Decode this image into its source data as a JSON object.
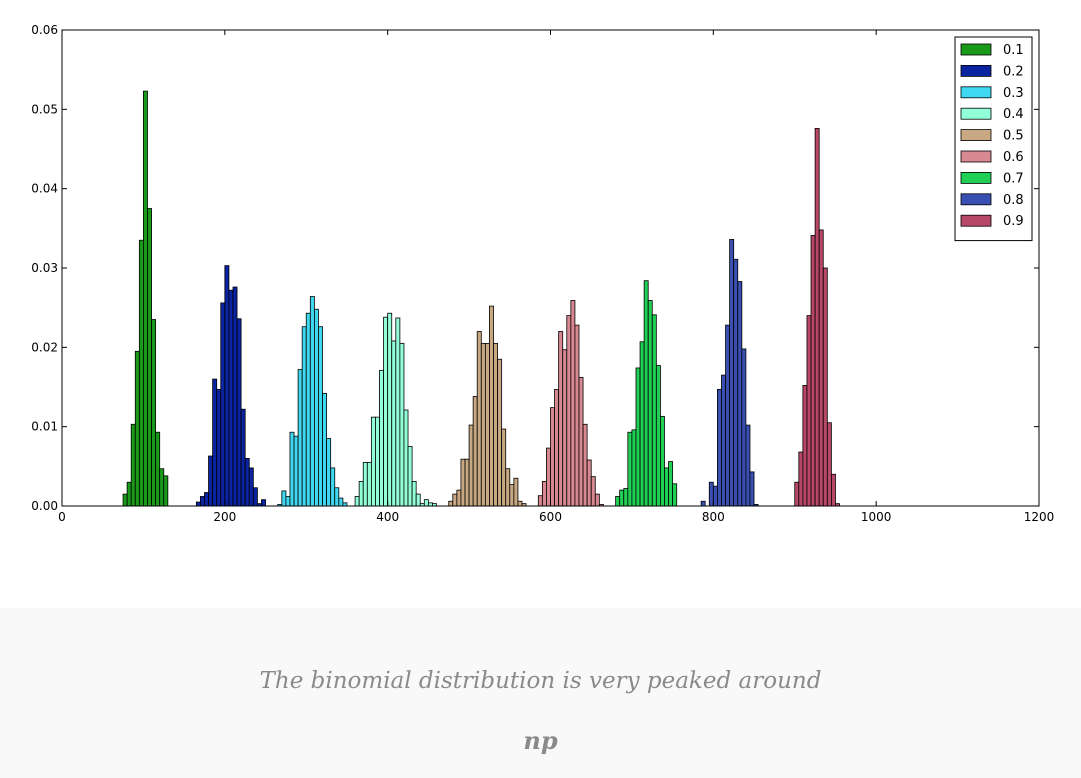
{
  "chart_data": {
    "type": "histogram",
    "xlim": [
      0,
      1200
    ],
    "xticks": [
      0,
      200,
      400,
      600,
      800,
      1000,
      1200
    ],
    "ylim": [
      0,
      0.06
    ],
    "yticks": [
      {
        "value": 0,
        "label": "0.00"
      },
      {
        "value": 0.01,
        "label": "0.01"
      },
      {
        "value": 0.02,
        "label": "0.02"
      },
      {
        "value": 0.03,
        "label": "0.03"
      },
      {
        "value": 0.04,
        "label": "0.04"
      },
      {
        "value": 0.05,
        "label": "0.05"
      },
      {
        "value": 0.06,
        "label": "0.06"
      }
    ],
    "legend": "upper right",
    "series": [
      {
        "name": "0.1",
        "color": "#1a9a1a",
        "bins": [
          75,
          80,
          85,
          90,
          95,
          100,
          105,
          110,
          115,
          120,
          125,
          130
        ],
        "values": [
          0.0015,
          0.003,
          0.0103,
          0.0195,
          0.0335,
          0.0523,
          0.0375,
          0.0235,
          0.0093,
          0.0047,
          0.0038
        ]
      },
      {
        "name": "0.2",
        "color": "#0a23a0",
        "bins": [
          165,
          170,
          175,
          180,
          185,
          190,
          195,
          200,
          205,
          210,
          215,
          220,
          225,
          230,
          235,
          240,
          245,
          250
        ],
        "values": [
          0.0005,
          0.0012,
          0.0017,
          0.0063,
          0.016,
          0.0147,
          0.0256,
          0.0303,
          0.0272,
          0.0276,
          0.0236,
          0.0122,
          0.006,
          0.0048,
          0.0023,
          0.0003,
          0.0008
        ]
      },
      {
        "name": "0.3",
        "color": "#3fd8f0",
        "bins": [
          265,
          270,
          275,
          280,
          285,
          290,
          295,
          300,
          305,
          310,
          315,
          320,
          325,
          330,
          335,
          340,
          345,
          350
        ],
        "values": [
          0.0002,
          0.0019,
          0.0012,
          0.0093,
          0.0088,
          0.0172,
          0.0226,
          0.0243,
          0.0264,
          0.0248,
          0.0226,
          0.0142,
          0.0085,
          0.0048,
          0.0023,
          0.001,
          0.0004
        ]
      },
      {
        "name": "0.4",
        "color": "#92ffd8",
        "bins": [
          360,
          365,
          370,
          375,
          380,
          385,
          390,
          395,
          400,
          405,
          410,
          415,
          420,
          425,
          430,
          435,
          440,
          445,
          450,
          455,
          460
        ],
        "values": [
          0.0012,
          0.0031,
          0.0055,
          0.0055,
          0.0112,
          0.0112,
          0.0171,
          0.0238,
          0.0243,
          0.0208,
          0.0237,
          0.0205,
          0.0121,
          0.0075,
          0.0031,
          0.0015,
          0.0003,
          0.0008,
          0.0004,
          0.0003
        ]
      },
      {
        "name": "0.5",
        "color": "#c8a882",
        "bins": [
          475,
          480,
          485,
          490,
          495,
          500,
          505,
          510,
          515,
          520,
          525,
          530,
          535,
          540,
          545,
          550,
          555,
          560,
          565,
          570
        ],
        "values": [
          0.0006,
          0.0015,
          0.002,
          0.0059,
          0.0059,
          0.0102,
          0.0138,
          0.022,
          0.0205,
          0.0205,
          0.0252,
          0.0205,
          0.0185,
          0.0097,
          0.0047,
          0.0027,
          0.0035,
          0.0006,
          0.0003
        ]
      },
      {
        "name": "0.6",
        "color": "#d88890",
        "bins": [
          585,
          590,
          595,
          600,
          605,
          610,
          615,
          620,
          625,
          630,
          635,
          640,
          645,
          650,
          655,
          660,
          665
        ],
        "values": [
          0.0013,
          0.0031,
          0.0073,
          0.0124,
          0.0147,
          0.022,
          0.0197,
          0.024,
          0.0259,
          0.0228,
          0.0162,
          0.0103,
          0.0058,
          0.0037,
          0.0015,
          0.0002
        ]
      },
      {
        "name": "0.7",
        "color": "#1fd055",
        "bins": [
          680,
          685,
          690,
          695,
          700,
          705,
          710,
          715,
          720,
          725,
          730,
          735,
          740,
          745,
          750,
          755
        ],
        "values": [
          0.0012,
          0.002,
          0.0022,
          0.0093,
          0.0096,
          0.0174,
          0.0207,
          0.0284,
          0.0259,
          0.0241,
          0.0177,
          0.0113,
          0.0048,
          0.0056,
          0.0028
        ]
      },
      {
        "name": "0.8",
        "color": "#3a4fb2",
        "bins": [
          785,
          790,
          795,
          800,
          805,
          810,
          815,
          820,
          825,
          830,
          835,
          840,
          845,
          850,
          855
        ],
        "values": [
          0.0006,
          0,
          0.003,
          0.0025,
          0.0147,
          0.0165,
          0.0228,
          0.0336,
          0.0311,
          0.0283,
          0.0198,
          0.0102,
          0.0043,
          0.0002
        ]
      },
      {
        "name": "0.9",
        "color": "#b84868",
        "bins": [
          900,
          905,
          910,
          915,
          920,
          925,
          930,
          935,
          940,
          945,
          950,
          955
        ],
        "values": [
          0.003,
          0.0068,
          0.0152,
          0.024,
          0.0341,
          0.0476,
          0.0348,
          0.03,
          0.0105,
          0.004,
          0.0003
        ]
      }
    ]
  },
  "caption": {
    "text": "The binomial distribution is very peaked around",
    "formula": "np"
  }
}
